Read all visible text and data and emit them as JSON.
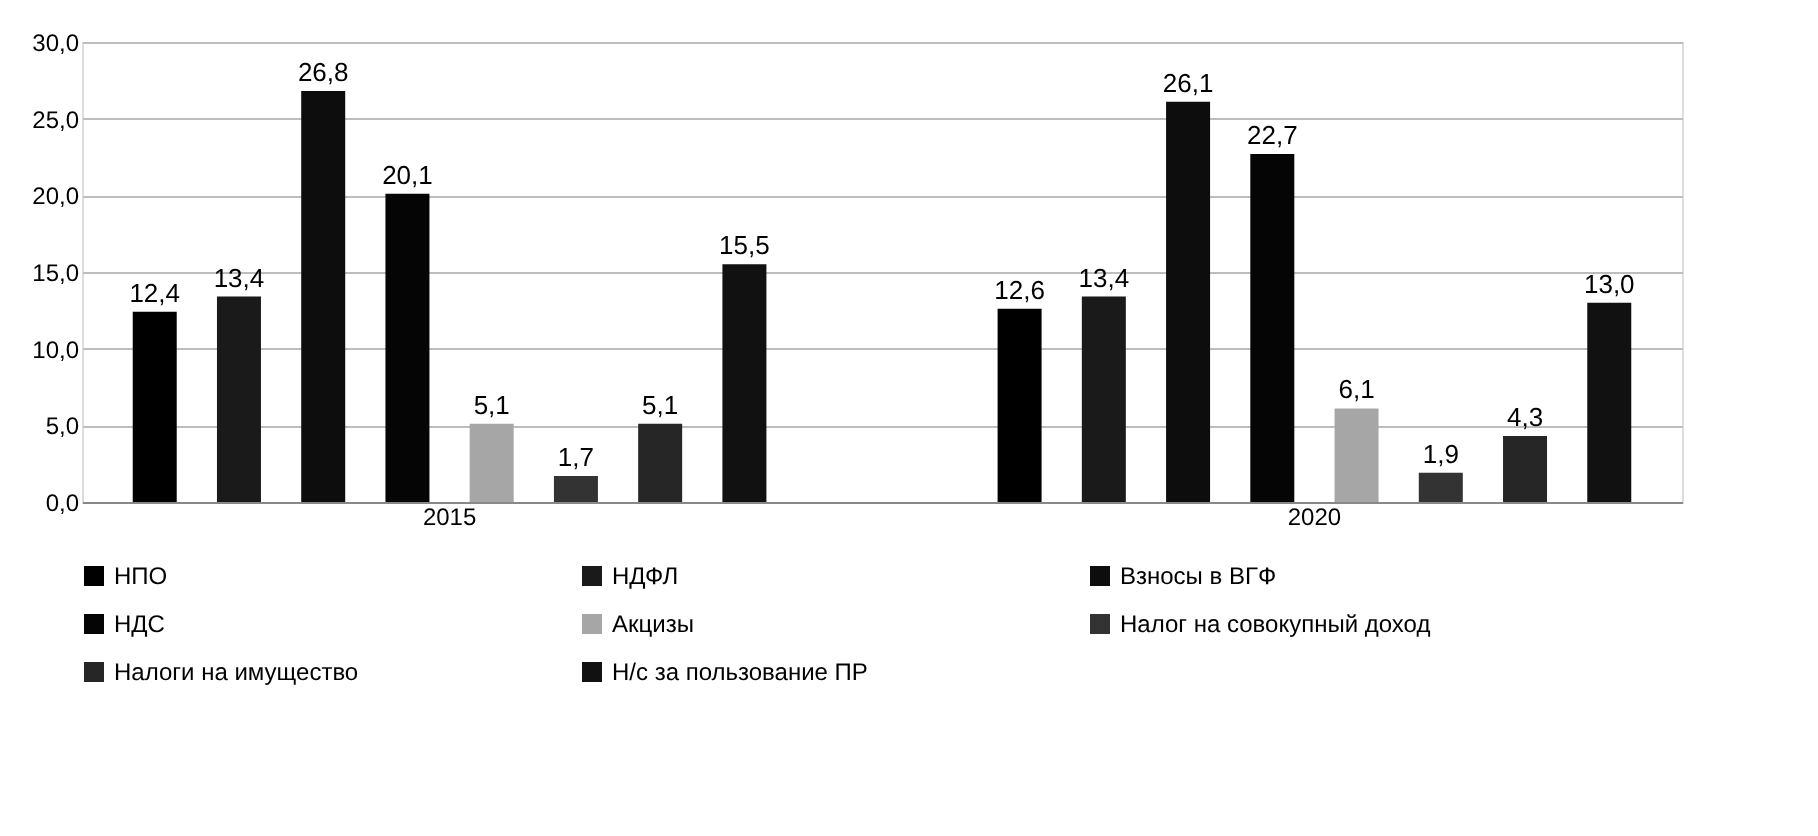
{
  "chart_data": {
    "type": "bar",
    "categories": [
      "2015",
      "2020"
    ],
    "series": [
      {
        "name": "НПО",
        "color": "#000000",
        "values": [
          12.4,
          12.6
        ],
        "value_labels": [
          "12,4",
          "12,6"
        ]
      },
      {
        "name": "НДФЛ",
        "color": "#1a1a1a",
        "values": [
          13.4,
          13.4
        ],
        "value_labels": [
          "13,4",
          "13,4"
        ]
      },
      {
        "name": "Взносы в ВГФ",
        "color": "#0d0d0d",
        "values": [
          26.8,
          26.1
        ],
        "value_labels": [
          "26,8",
          "26,1"
        ]
      },
      {
        "name": "НДС",
        "color": "#050505",
        "values": [
          20.1,
          22.7
        ],
        "value_labels": [
          "20,1",
          "22,7"
        ]
      },
      {
        "name": "Акцизы",
        "color": "#a6a6a6",
        "values": [
          5.1,
          6.1
        ],
        "value_labels": [
          "5,1",
          "6,1"
        ]
      },
      {
        "name": "Налог на совокупный доход",
        "color": "#333333",
        "values": [
          1.7,
          1.9
        ],
        "value_labels": [
          "1,7",
          "1,9"
        ]
      },
      {
        "name": "Налоги на имущество",
        "color": "#262626",
        "values": [
          5.1,
          4.3
        ],
        "value_labels": [
          "5,1",
          "4,3"
        ]
      },
      {
        "name": "Н/с за пользование ПР",
        "color": "#111111",
        "values": [
          15.5,
          13.0
        ],
        "value_labels": [
          "15,5",
          "13,0"
        ]
      }
    ],
    "ylim": [
      0,
      30
    ],
    "yticks": [
      {
        "value": 0,
        "label": "0,0"
      },
      {
        "value": 5,
        "label": "5,0"
      },
      {
        "value": 10,
        "label": "10,0"
      },
      {
        "value": 15,
        "label": "15,0"
      },
      {
        "value": 20,
        "label": "20,0"
      },
      {
        "value": 25,
        "label": "25,0"
      },
      {
        "value": 30,
        "label": "30,0"
      }
    ],
    "grid": "y",
    "legend": "bottom"
  }
}
